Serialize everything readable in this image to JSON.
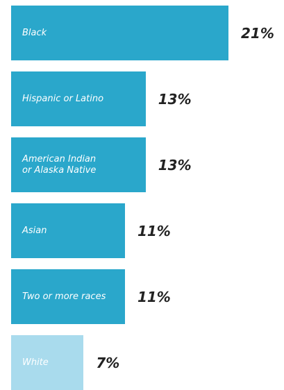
{
  "chart_data": {
    "type": "bar",
    "orientation": "horizontal",
    "categories": [
      "Black",
      "Hispanic or Latino",
      "American Indian\nor Alaska Native",
      "Asian",
      "Two or more races",
      "White"
    ],
    "values": [
      21,
      13,
      13,
      11,
      11,
      7
    ],
    "value_labels": [
      "21%",
      "13%",
      "13%",
      "11%",
      "11%",
      "7%"
    ],
    "bar_colors": [
      "#2aa7cb",
      "#2aa7cb",
      "#2aa7cb",
      "#2aa7cb",
      "#2aa7cb",
      "#a9dbed"
    ],
    "title": "",
    "xlabel": "",
    "ylabel": "",
    "grid": false,
    "legend": "none"
  }
}
